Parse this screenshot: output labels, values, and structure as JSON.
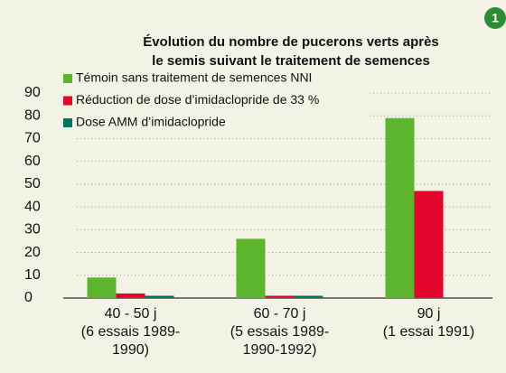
{
  "badge": "1",
  "chart_data": {
    "type": "bar",
    "title": [
      "Évolution du nombre de pucerons verts après",
      "le semis suivant le traitement de semences"
    ],
    "categories": [
      "40 - 50 j\n(6 essais 1989-\n1990)",
      "60 - 70 j\n(5 essais 1989-\n1990-1992)",
      "90 j\n(1 essai 1991)"
    ],
    "series": [
      {
        "name": "Témoin sans traitement de semences NNI",
        "color": "#5cb52c",
        "values": [
          9,
          26,
          79
        ]
      },
      {
        "name": "Réduction de dose d’imidaclopride de 33 %",
        "color": "#e2062c",
        "values": [
          2,
          1,
          47
        ]
      },
      {
        "name": "Dose AMM d’imidaclopride",
        "color": "#00765f",
        "values": [
          1,
          1,
          null
        ]
      }
    ],
    "ylim": [
      0,
      90
    ],
    "yticks": [
      0,
      10,
      20,
      30,
      40,
      50,
      60,
      70,
      80,
      90
    ],
    "grid": true,
    "legend": "top-left"
  }
}
